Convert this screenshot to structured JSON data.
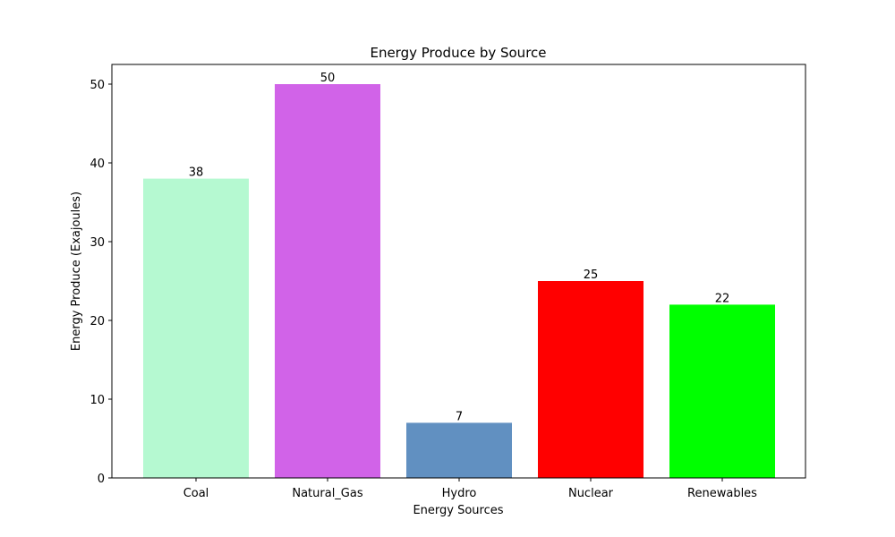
{
  "chart_data": {
    "type": "bar",
    "title": "Energy Produce by Source",
    "xlabel": "Energy Sources",
    "ylabel": "Energy Produce (Exajoules)",
    "categories": [
      "Coal",
      "Natural_Gas",
      "Hydro",
      "Nuclear",
      "Renewables"
    ],
    "values": [
      38,
      50,
      7,
      25,
      22
    ],
    "colors": [
      "#b5f9d1",
      "#d163e8",
      "#6190c1",
      "#ff0000",
      "#00ff00"
    ],
    "ylim": [
      0,
      52.5
    ],
    "yticks": [
      0,
      10,
      20,
      30,
      40,
      50
    ],
    "grid": false,
    "data_labels": [
      "38",
      "50",
      "7",
      "25",
      "22"
    ]
  }
}
